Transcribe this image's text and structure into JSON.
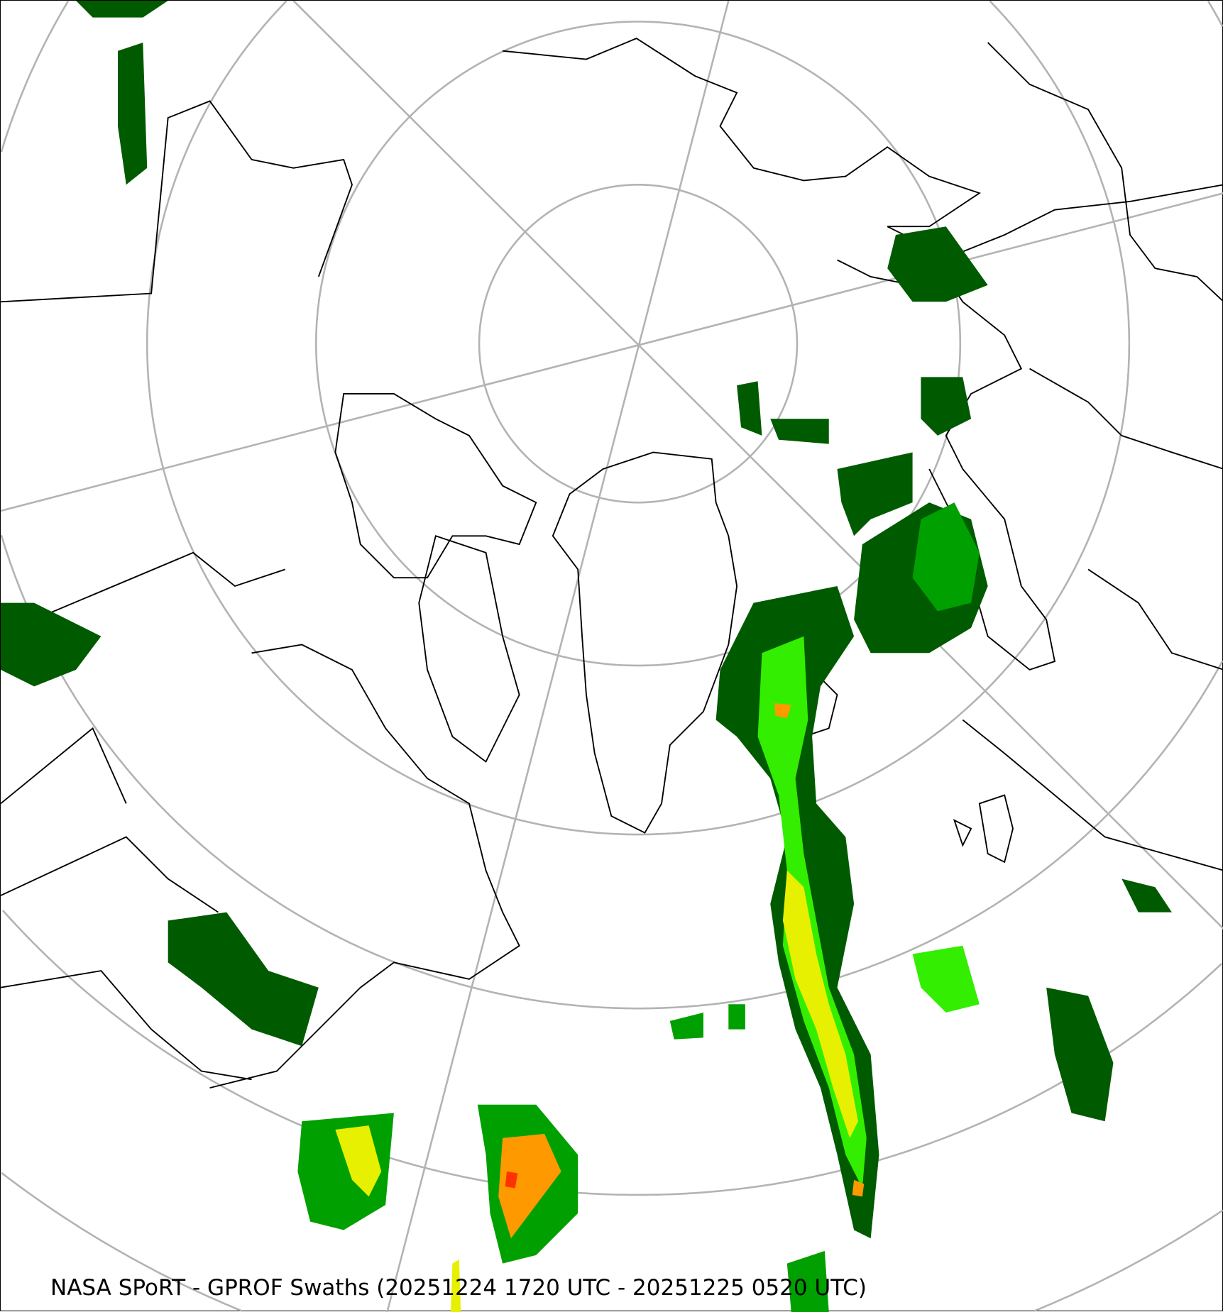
{
  "map": {
    "caption": "NASA SPoRT - GPROF Swaths (20251224 1720 UTC - 20251225 0520 UTC)",
    "projection": "north-polar-stereographic",
    "colors": {
      "graticule": "#b3b3b3",
      "coastline": "#000000",
      "precip_light": "#005a00",
      "precip_moderate": "#00a000",
      "precip_bright": "#33ee00",
      "precip_heavy": "#e6f000",
      "precip_intense": "#ff9900",
      "precip_extreme": "#ff3300"
    }
  }
}
